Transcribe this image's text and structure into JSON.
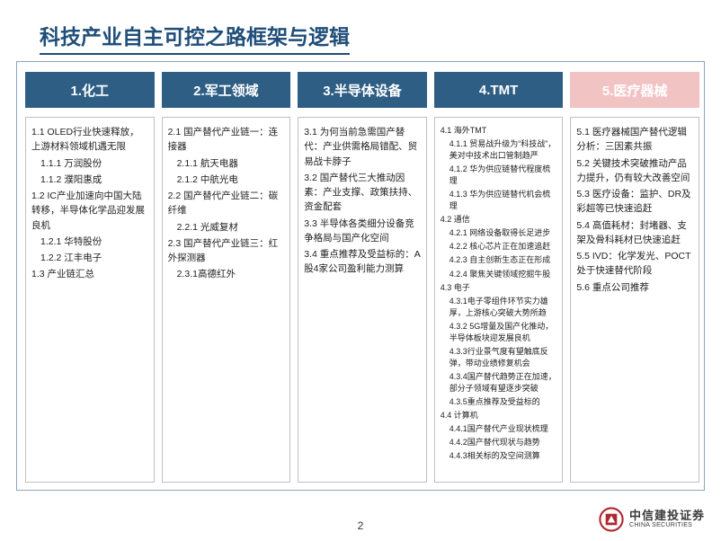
{
  "title": "科技产业自主可控之路框架与逻辑",
  "page_number": "2",
  "colors": {
    "header_blue": "#2e5e84",
    "header_pink": "#f2c3c3",
    "title_blue": "#1f4e79",
    "frame_border": "#8aa5c0",
    "col_border": "#bfbfbf"
  },
  "logo": {
    "cn": "中信建投证券",
    "en": "CHINA SECURITIES",
    "red": "#b0282e"
  },
  "columns": [
    {
      "header": "1.化工",
      "header_bg": "#2e5e84",
      "small": false,
      "items": [
        {
          "lvl": 1,
          "t": "1.1 OLED行业快速释放，上游材料领域机遇无限"
        },
        {
          "lvl": 2,
          "t": "1.1.1 万润股份"
        },
        {
          "lvl": 2,
          "t": "1.1.2 濮阳惠成"
        },
        {
          "lvl": 1,
          "t": "1.2 IC产业加速向中国大陆转移，半导体化学品迎发展良机"
        },
        {
          "lvl": 2,
          "t": "1.2.1 华特股份"
        },
        {
          "lvl": 2,
          "t": "1.2.2 江丰电子"
        },
        {
          "lvl": 1,
          "t": "1.3 产业链汇总"
        }
      ]
    },
    {
      "header": "2.军工领域",
      "header_bg": "#2e5e84",
      "small": false,
      "items": [
        {
          "lvl": 1,
          "t": "2.1 国产替代产业链一：连接器"
        },
        {
          "lvl": 2,
          "t": "2.1.1 航天电器"
        },
        {
          "lvl": 2,
          "t": "2.1.2 中航光电"
        },
        {
          "lvl": 1,
          "t": "2.2 国产替代产业链二：碳纤维"
        },
        {
          "lvl": 2,
          "t": "2.2.1 光威复材"
        },
        {
          "lvl": 1,
          "t": "2.3 国产替代产业链三：红外探测器"
        },
        {
          "lvl": 2,
          "t": "2.3.1高德红外"
        }
      ]
    },
    {
      "header": "3.半导体设备",
      "header_bg": "#2e5e84",
      "small": false,
      "items": [
        {
          "lvl": 1,
          "t": "3.1 为何当前急需国产替代：产业供需格局错配、贸易战卡脖子"
        },
        {
          "lvl": 1,
          "t": "3.2 国产替代三大推动因素：产业支撑、政策扶持、资金配套"
        },
        {
          "lvl": 1,
          "t": "3.3 半导体各类细分设备竞争格局与国产化空间"
        },
        {
          "lvl": 1,
          "t": "3.4 重点推荐及受益标的：A股4家公司盈利能力测算"
        }
      ]
    },
    {
      "header": "4.TMT",
      "header_bg": "#2e5e84",
      "small": true,
      "items": [
        {
          "lvl": 1,
          "t": "4.1 海外TMT"
        },
        {
          "lvl": 2,
          "t": "4.1.1 贸易战升级为“科技战”，美对中技术出口管制趋严"
        },
        {
          "lvl": 2,
          "t": "4.1.2 华为供应链替代程度梳理"
        },
        {
          "lvl": 2,
          "t": "4.1.3 华为供应链替代机会梳理"
        },
        {
          "lvl": 1,
          "t": "4.2 通信"
        },
        {
          "lvl": 2,
          "t": "4.2.1 网络设备取得长足进步"
        },
        {
          "lvl": 2,
          "t": "4.2.2 核心芯片正在加速追赶"
        },
        {
          "lvl": 2,
          "t": "4.2.3 自主创新生态正在形成"
        },
        {
          "lvl": 2,
          "t": "4.2.4 聚焦关键领域挖掘牛股"
        },
        {
          "lvl": 1,
          "t": "4.3 电子"
        },
        {
          "lvl": 2,
          "t": "4.3.1电子零组件环节实力雄厚，上游核心突破大势所趋"
        },
        {
          "lvl": 2,
          "t": "4.3.2 5G增量及国产化推动，半导体板块迎发展良机"
        },
        {
          "lvl": 2,
          "t": "4.3.3行业景气度有望触底反弹，带动业绩修复机会"
        },
        {
          "lvl": 2,
          "t": "4.3.4国产替代趋势正在加速，部分子领域有望逐步突破"
        },
        {
          "lvl": 2,
          "t": "4.3.5重点推荐及受益标的"
        },
        {
          "lvl": 1,
          "t": "4.4 计算机"
        },
        {
          "lvl": 2,
          "t": "4.4.1国产替代产业现状梳理"
        },
        {
          "lvl": 2,
          "t": "4.4.2国产替代现状与趋势"
        },
        {
          "lvl": 2,
          "t": "4.4.3相关标的及空间测算"
        }
      ]
    },
    {
      "header": "5.医疗器械",
      "header_bg": "#f2c3c3",
      "small": false,
      "items": [
        {
          "lvl": 1,
          "t": "5.1 医疗器械国产替代逻辑分析：三因素共振"
        },
        {
          "lvl": 1,
          "t": "5.2 关键技术突破推动产品力提升，仍有较大改善空间"
        },
        {
          "lvl": 1,
          "t": "5.3 医疗设备：监护、DR及彩超等已快速追赶"
        },
        {
          "lvl": 1,
          "t": "5.4 高值耗材：封堵器、支架及骨科耗材已快速追赶"
        },
        {
          "lvl": 1,
          "t": "5.5 IVD：化学发光、POCT处于快速替代阶段"
        },
        {
          "lvl": 1,
          "t": "5.6 重点公司推荐"
        }
      ]
    }
  ]
}
